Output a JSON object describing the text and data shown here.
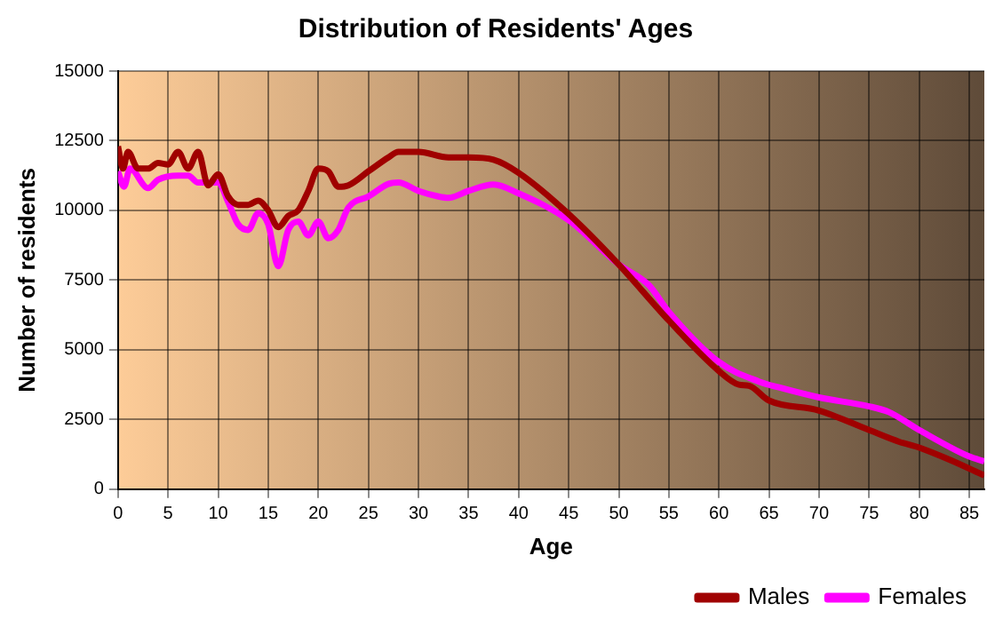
{
  "chart_data": {
    "type": "line",
    "title": "Distribution of Residents' Ages",
    "xlabel": "Age",
    "ylabel": "Number of residents",
    "xlim": [
      0,
      86.5
    ],
    "xticks": [
      0,
      5,
      10,
      15,
      20,
      25,
      30,
      35,
      40,
      45,
      50,
      55,
      60,
      65,
      70,
      75,
      80,
      85
    ],
    "ylim": [
      0,
      15000
    ],
    "yticks": [
      0,
      2500,
      5000,
      7500,
      10000,
      12500,
      15000
    ],
    "grid": true,
    "legend": "bottom right",
    "marker": "none",
    "line_style": "solid",
    "series": [
      {
        "name": "Males",
        "color": "#a00000",
        "x": [
          0,
          0.5,
          1,
          2,
          3,
          4,
          5,
          6,
          7,
          8,
          9,
          10,
          11,
          12,
          13,
          14,
          15,
          16,
          17,
          18,
          19,
          20,
          21,
          22,
          23,
          25,
          27,
          28,
          30,
          33,
          35,
          37.5,
          40,
          45,
          50,
          55,
          60,
          62,
          63,
          65,
          70,
          75,
          78,
          80,
          83,
          86.5
        ],
        "values": [
          12300,
          11500,
          12100,
          11500,
          11500,
          11700,
          11650,
          12100,
          11500,
          12100,
          10900,
          11300,
          10500,
          10200,
          10200,
          10350,
          10000,
          9400,
          9800,
          10000,
          10700,
          11500,
          11400,
          10850,
          10900,
          11400,
          11900,
          12100,
          12100,
          11900,
          11900,
          11820,
          11350,
          9870,
          8060,
          6050,
          4240,
          3750,
          3710,
          3180,
          2820,
          2120,
          1700,
          1490,
          1060,
          490
        ]
      },
      {
        "name": "Females",
        "color": "#ff00ff",
        "x": [
          0,
          0.6,
          1.2,
          3,
          4,
          6,
          7,
          8,
          10,
          11,
          12,
          13,
          14,
          15,
          16,
          17,
          18,
          19,
          20,
          21,
          22,
          23,
          25,
          27,
          28,
          30,
          32,
          33,
          35,
          37.5,
          40,
          45,
          50,
          53,
          55,
          60,
          64,
          66,
          70,
          75,
          77,
          80,
          85,
          86.5
        ],
        "values": [
          11400,
          10850,
          11500,
          10800,
          11100,
          11250,
          11250,
          11000,
          11000,
          10300,
          9500,
          9300,
          9900,
          9500,
          8000,
          9300,
          9600,
          9100,
          9600,
          9000,
          9300,
          10100,
          10500,
          10950,
          11000,
          10700,
          10500,
          10450,
          10700,
          10930,
          10610,
          9650,
          8060,
          7320,
          6360,
          4560,
          3860,
          3650,
          3290,
          2970,
          2760,
          2120,
          1170,
          1000
        ]
      }
    ]
  }
}
